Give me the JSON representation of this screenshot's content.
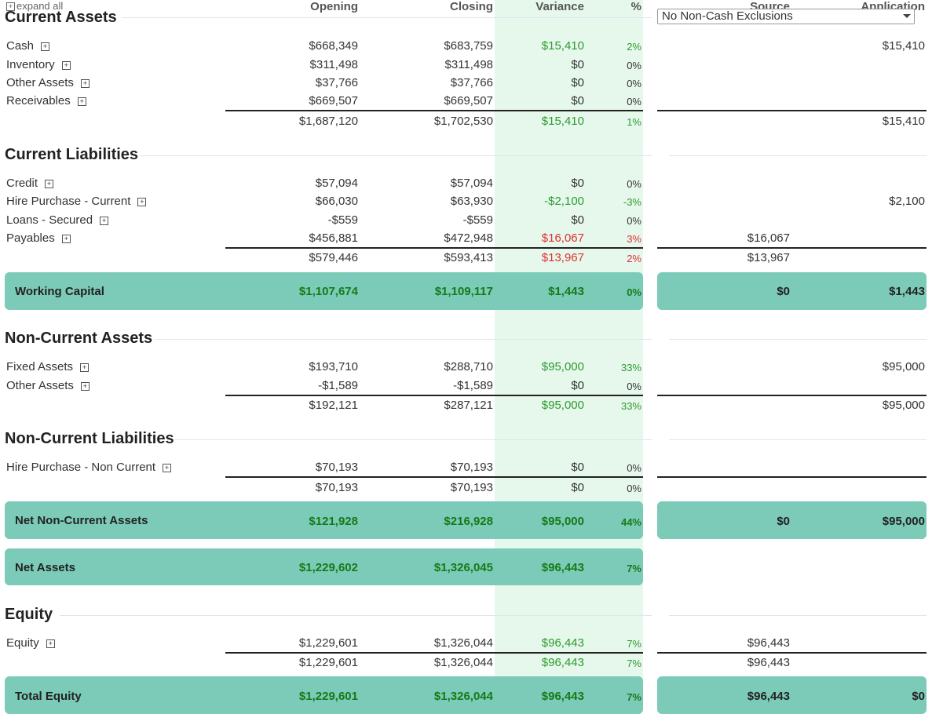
{
  "headers": {
    "expand_all": "expand all",
    "opening": "Opening",
    "closing": "Closing",
    "variance": "Variance",
    "pct": "%",
    "source": "Source",
    "application": "Application"
  },
  "filter": {
    "selected": "No Non-Cash Exclusions"
  },
  "current_assets": {
    "title": "Current Assets",
    "rows": [
      {
        "label": "Cash",
        "opening": "$668,349",
        "closing": "$683,759",
        "variance": "$15,410",
        "pct": "2%",
        "source": "",
        "application": "$15,410"
      },
      {
        "label": "Inventory",
        "opening": "$311,498",
        "closing": "$311,498",
        "variance": "$0",
        "pct": "0%",
        "source": "",
        "application": ""
      },
      {
        "label": "Other Assets",
        "opening": "$37,766",
        "closing": "$37,766",
        "variance": "$0",
        "pct": "0%",
        "source": "",
        "application": ""
      },
      {
        "label": "Receivables",
        "opening": "$669,507",
        "closing": "$669,507",
        "variance": "$0",
        "pct": "0%",
        "source": "",
        "application": ""
      }
    ],
    "total": {
      "opening": "$1,687,120",
      "closing": "$1,702,530",
      "variance": "$15,410",
      "pct": "1%",
      "source": "",
      "application": "$15,410"
    }
  },
  "current_liabilities": {
    "title": "Current Liabilities",
    "rows": [
      {
        "label": "Credit",
        "opening": "$57,094",
        "closing": "$57,094",
        "variance": "$0",
        "pct": "0%",
        "source": "",
        "application": ""
      },
      {
        "label": "Hire Purchase - Current",
        "opening": "$66,030",
        "closing": "$63,930",
        "variance": "-$2,100",
        "pct": "-3%",
        "source": "",
        "application": "$2,100"
      },
      {
        "label": "Loans - Secured",
        "opening": "-$559",
        "closing": "-$559",
        "variance": "$0",
        "pct": "0%",
        "source": "",
        "application": ""
      },
      {
        "label": "Payables",
        "opening": "$456,881",
        "closing": "$472,948",
        "variance": "$16,067",
        "pct": "3%",
        "source": "$16,067",
        "application": ""
      }
    ],
    "total": {
      "opening": "$579,446",
      "closing": "$593,413",
      "variance": "$13,967",
      "pct": "2%",
      "source": "$13,967",
      "application": ""
    }
  },
  "working_capital": {
    "label": "Working Capital",
    "opening": "$1,107,674",
    "closing": "$1,109,117",
    "variance": "$1,443",
    "pct": "0%",
    "source": "$0",
    "application": "$1,443"
  },
  "non_current_assets": {
    "title": "Non-Current Assets",
    "rows": [
      {
        "label": "Fixed Assets",
        "opening": "$193,710",
        "closing": "$288,710",
        "variance": "$95,000",
        "pct": "33%",
        "source": "",
        "application": "$95,000"
      },
      {
        "label": "Other Assets",
        "opening": "-$1,589",
        "closing": "-$1,589",
        "variance": "$0",
        "pct": "0%",
        "source": "",
        "application": ""
      }
    ],
    "total": {
      "opening": "$192,121",
      "closing": "$287,121",
      "variance": "$95,000",
      "pct": "33%",
      "source": "",
      "application": "$95,000"
    }
  },
  "non_current_liabilities": {
    "title": "Non-Current Liabilities",
    "rows": [
      {
        "label": "Hire Purchase - Non Current",
        "opening": "$70,193",
        "closing": "$70,193",
        "variance": "$0",
        "pct": "0%",
        "source": "",
        "application": ""
      }
    ],
    "total": {
      "opening": "$70,193",
      "closing": "$70,193",
      "variance": "$0",
      "pct": "0%",
      "source": "",
      "application": ""
    }
  },
  "net_non_current_assets": {
    "label": "Net Non-Current Assets",
    "opening": "$121,928",
    "closing": "$216,928",
    "variance": "$95,000",
    "pct": "44%",
    "source": "$0",
    "application": "$95,000"
  },
  "net_assets": {
    "label": "Net Assets",
    "opening": "$1,229,602",
    "closing": "$1,326,045",
    "variance": "$96,443",
    "pct": "7%"
  },
  "equity": {
    "title": "Equity",
    "rows": [
      {
        "label": "Equity",
        "opening": "$1,229,601",
        "closing": "$1,326,044",
        "variance": "$96,443",
        "pct": "7%",
        "source": "$96,443",
        "application": ""
      }
    ],
    "total": {
      "opening": "$1,229,601",
      "closing": "$1,326,044",
      "variance": "$96,443",
      "pct": "7%",
      "source": "$96,443",
      "application": ""
    }
  },
  "total_equity": {
    "label": "Total Equity",
    "opening": "$1,229,601",
    "closing": "$1,326,044",
    "variance": "$96,443",
    "pct": "7%",
    "source": "$96,443",
    "application": "$0"
  },
  "colors": {
    "band": "#7ccab8",
    "variance_bg": "#e6f8ec",
    "positive": "#2e9a2e",
    "negative": "#e03030",
    "band_text": "#167a16"
  }
}
